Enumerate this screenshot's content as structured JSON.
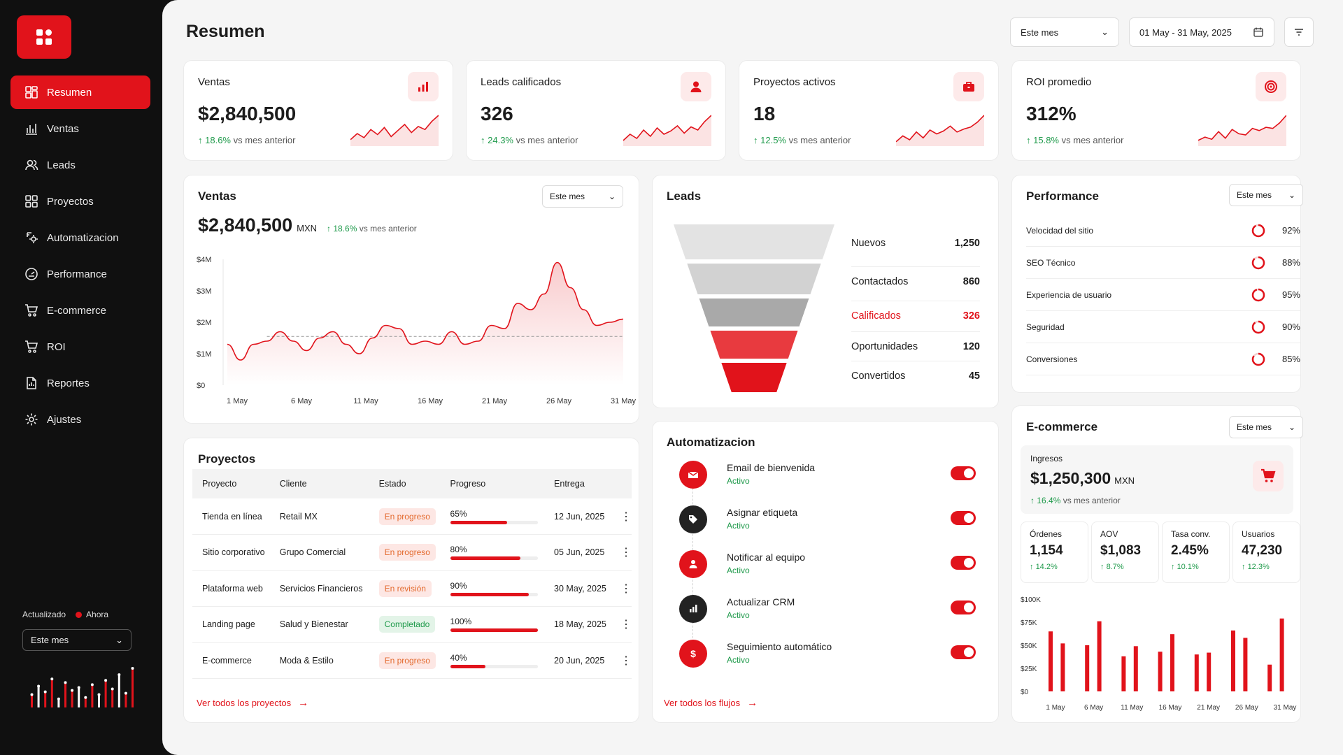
{
  "sidebar": {
    "items": [
      {
        "label": "Resumen",
        "icon": "dashboard-icon"
      },
      {
        "label": "Ventas",
        "icon": "bar-chart-icon"
      },
      {
        "label": "Leads",
        "icon": "users-icon"
      },
      {
        "label": "Proyectos",
        "icon": "grid-icon"
      },
      {
        "label": "Automatizacion",
        "icon": "automation-icon"
      },
      {
        "label": "Performance",
        "icon": "gauge-icon"
      },
      {
        "label": "E-commerce",
        "icon": "cart-icon"
      },
      {
        "label": "ROI",
        "icon": "cart-icon"
      },
      {
        "label": "Reportes",
        "icon": "report-icon"
      },
      {
        "label": "Ajustes",
        "icon": "gear-icon"
      }
    ],
    "updated_label": "Actualizado",
    "updated_value": "Ahora",
    "period": "Este mes",
    "spark": [
      18,
      30,
      22,
      40,
      12,
      35,
      24,
      28,
      14,
      32,
      18,
      38,
      26,
      46,
      20,
      55
    ]
  },
  "header": {
    "title": "Resumen",
    "period": "Este mes",
    "date_range": "01 May - 31 May, 2025"
  },
  "kpis": [
    {
      "label": "Ventas",
      "value": "$2,840,500",
      "delta": "18.6%",
      "delta_text": "vs mes anterior",
      "icon": "bar-chart-icon",
      "spark": [
        10,
        22,
        14,
        30,
        20,
        34,
        16,
        28,
        40,
        24,
        36,
        30,
        46,
        58
      ]
    },
    {
      "label": "Leads calificados",
      "value": "326",
      "delta": "24.3%",
      "delta_text": "vs mes anterior",
      "icon": "user-icon",
      "spark": [
        8,
        20,
        12,
        28,
        16,
        32,
        20,
        26,
        36,
        22,
        34,
        28,
        44,
        56
      ]
    },
    {
      "label": "Proyectos activos",
      "value": "18",
      "delta": "12.5%",
      "delta_text": "vs mes anterior",
      "icon": "briefcase-icon",
      "spark": [
        6,
        18,
        10,
        26,
        14,
        30,
        22,
        28,
        38,
        26,
        32,
        36,
        46,
        60
      ]
    },
    {
      "label": "ROI promedio",
      "value": "312%",
      "delta": "15.8%",
      "delta_text": "vs mes anterior",
      "icon": "target-icon",
      "spark": [
        8,
        14,
        10,
        24,
        12,
        28,
        20,
        18,
        30,
        26,
        32,
        30,
        40,
        54
      ]
    }
  ],
  "sales": {
    "title": "Ventas",
    "period": "Este mes",
    "value": "$2,840,500",
    "currency": "MXN",
    "delta": "18.6%",
    "delta_text": "vs mes anterior"
  },
  "chart_data": {
    "type": "area",
    "title": "Ventas",
    "x_labels": [
      "1 May",
      "6 May",
      "11 May",
      "16 May",
      "21 May",
      "26 May",
      "31 May"
    ],
    "y_labels": [
      "$4M",
      "$3M",
      "$2M",
      "$1M",
      "$0"
    ],
    "ylim": [
      0,
      4
    ],
    "x": [
      1,
      2,
      3,
      4,
      5,
      6,
      7,
      8,
      9,
      10,
      11,
      12,
      13,
      14,
      15,
      16,
      17,
      18,
      19,
      20,
      21,
      22,
      23,
      24,
      25,
      26,
      27,
      28,
      29,
      30,
      31
    ],
    "values": [
      1.3,
      0.8,
      1.3,
      1.4,
      1.7,
      1.4,
      1.1,
      1.5,
      1.7,
      1.3,
      1.0,
      1.5,
      1.9,
      1.8,
      1.3,
      1.4,
      1.3,
      1.7,
      1.3,
      1.4,
      1.9,
      1.8,
      2.6,
      2.4,
      2.9,
      3.9,
      3.1,
      2.4,
      1.9,
      2.0,
      2.1
    ],
    "target": 1.55
  },
  "leads": {
    "title": "Leads",
    "stages": [
      {
        "label": "Nuevos",
        "value": "1,250",
        "color": "#e3e3e3"
      },
      {
        "label": "Contactados",
        "value": "860",
        "color": "#d2d2d2"
      },
      {
        "label": "Calificados",
        "value": "326",
        "color": "#a9a9a9",
        "highlight": true
      },
      {
        "label": "Oportunidades",
        "value": "120",
        "color": "#e83a3f"
      },
      {
        "label": "Convertidos",
        "value": "45",
        "color": "#e1131b"
      }
    ]
  },
  "performance": {
    "title": "Performance",
    "period": "Este mes",
    "rows": [
      {
        "label": "Velocidad del sitio",
        "value": "92%"
      },
      {
        "label": "SEO Técnico",
        "value": "88%"
      },
      {
        "label": "Experiencia de usuario",
        "value": "95%"
      },
      {
        "label": "Seguridad",
        "value": "90%"
      },
      {
        "label": "Conversiones",
        "value": "85%"
      }
    ]
  },
  "projects": {
    "title": "Proyectos",
    "columns": [
      "Proyecto",
      "Cliente",
      "Estado",
      "Progreso",
      "Entrega"
    ],
    "rows": [
      {
        "name": "Tienda en línea",
        "client": "Retail MX",
        "status": "En progreso",
        "progress": "65%",
        "date": "12 Jun, 2025"
      },
      {
        "name": "Sitio corporativo",
        "client": "Grupo Comercial",
        "status": "En progreso",
        "progress": "80%",
        "date": "05 Jun, 2025"
      },
      {
        "name": "Plataforma web",
        "client": "Servicios Financieros",
        "status": "En revisión",
        "progress": "90%",
        "date": "30 May, 2025"
      },
      {
        "name": "Landing page",
        "client": "Salud y Bienestar",
        "status": "Completado",
        "progress": "100%",
        "date": "18 May, 2025"
      },
      {
        "name": "E-commerce",
        "client": "Moda & Estilo",
        "status": "En progreso",
        "progress": "40%",
        "date": "20 Jun, 2025"
      }
    ],
    "link": "Ver todos los proyectos"
  },
  "automation": {
    "title": "Automatizacion",
    "items": [
      {
        "name": "Email de bienvenida",
        "status": "Activo",
        "icon": "mail-icon",
        "color": "#e1131b"
      },
      {
        "name": "Asignar etiqueta",
        "status": "Activo",
        "icon": "tag-icon",
        "color": "#222222"
      },
      {
        "name": "Notificar al equipo",
        "status": "Activo",
        "icon": "user-icon",
        "color": "#e1131b"
      },
      {
        "name": "Actualizar CRM",
        "status": "Activo",
        "icon": "bar-chart-icon",
        "color": "#222222"
      },
      {
        "name": "Seguimiento automático",
        "status": "Activo",
        "icon": "dollar-icon",
        "color": "#e1131b"
      }
    ],
    "link": "Ver todos los flujos"
  },
  "ecommerce": {
    "title": "E-commerce",
    "period": "Este mes",
    "income_label": "Ingresos",
    "income_value": "$1,250,300",
    "currency": "MXN",
    "delta": "16.4%",
    "delta_text": "vs mes anterior",
    "stats": [
      {
        "label": "Órdenes",
        "value": "1,154",
        "delta": "14.2%"
      },
      {
        "label": "AOV",
        "value": "$1,083",
        "delta": "8.7%"
      },
      {
        "label": "Tasa conv.",
        "value": "2.45%",
        "delta": "10.1%"
      },
      {
        "label": "Usuarios",
        "value": "47,230",
        "delta": "12.3%"
      }
    ],
    "chart": {
      "type": "bar",
      "y_labels": [
        "$100K",
        "$75K",
        "$50K",
        "$25K",
        "$0"
      ],
      "x_labels": [
        "1 May",
        "6 May",
        "11 May",
        "16 May",
        "21 May",
        "26 May",
        "31 May"
      ],
      "ylim": [
        0,
        100
      ],
      "values": [
        65,
        52,
        0,
        50,
        76,
        0,
        38,
        49,
        0,
        43,
        62,
        0,
        40,
        42,
        0,
        66,
        58,
        0,
        29,
        79
      ]
    }
  },
  "colors": {
    "accent": "#e1131b",
    "positive": "#1f9a4b"
  }
}
